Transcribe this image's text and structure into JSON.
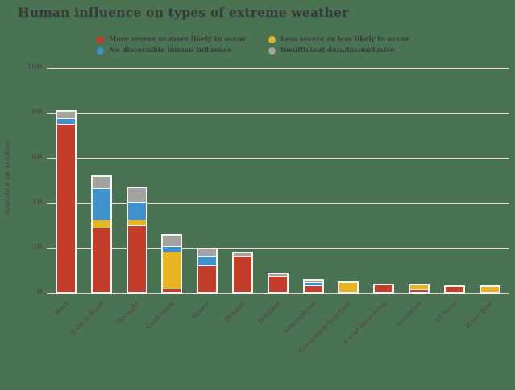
{
  "title": "Human influence on types of extreme weather",
  "legend": {
    "items": [
      {
        "label": "More severe or more likely to occur",
        "color": "#c33d2b",
        "icon": "red-dot"
      },
      {
        "label": "No discernible human influence",
        "color": "#3f90cb",
        "icon": "blue-dot"
      },
      {
        "label": "Less severe or less likely to occur",
        "color": "#e8b424",
        "icon": "yellow-dot"
      },
      {
        "label": "Insufficient data/inconclusive",
        "color": "#a3a3a1",
        "icon": "gray-dot"
      }
    ]
  },
  "chart_data": {
    "type": "bar",
    "stacked": true,
    "title": "Human influence on types of extreme weather",
    "xlabel": "",
    "ylabel": "Number of studies",
    "ylim": [
      0,
      100
    ],
    "yticks": [
      0,
      20,
      40,
      60,
      80,
      100
    ],
    "grid": true,
    "legend_position": "top",
    "categories": [
      "Heat",
      "Rain & flood",
      "Drought",
      "Cold/snow",
      "Storm",
      "Oceans",
      "Wildfire",
      "Atmosphere",
      "Ecosystem function",
      "Coral bleaching",
      "Sunshine",
      "El Niño",
      "River flow"
    ],
    "series": [
      {
        "name": "More severe or more likely to occur",
        "color": "#c33d2b",
        "values": [
          75,
          29,
          30,
          1,
          12,
          16,
          7,
          3,
          0,
          3,
          1,
          2,
          0
        ]
      },
      {
        "name": "Less severe or less likely to occur",
        "color": "#e8b424",
        "values": [
          0,
          3,
          2,
          17,
          0,
          0,
          0,
          0,
          4,
          0,
          2,
          0,
          2
        ]
      },
      {
        "name": "No discernible human influence",
        "color": "#3f90cb",
        "values": [
          2,
          14,
          8,
          2,
          4,
          0,
          0,
          1,
          0,
          0,
          0,
          0,
          0
        ]
      },
      {
        "name": "Insufficient data/inconclusive",
        "color": "#a3a3a1",
        "values": [
          3,
          5,
          6,
          5,
          3,
          1,
          1,
          1,
          0,
          0,
          0,
          0,
          0
        ]
      }
    ],
    "totals": [
      80,
      51,
      46,
      25,
      19,
      17,
      8,
      5,
      4,
      3,
      3,
      2,
      2
    ],
    "stack_order_bottom_to_top": [
      "More severe or more likely to occur",
      "Less severe or less likely to occur",
      "No discernible human influence",
      "Insufficient data/inconclusive"
    ]
  },
  "colors": {
    "background": "#4a7353",
    "gridline": "#dcdbd7",
    "bar_border": "#f4f3ef",
    "title_text": "#383838",
    "axis_text": "#4f4f4f"
  }
}
